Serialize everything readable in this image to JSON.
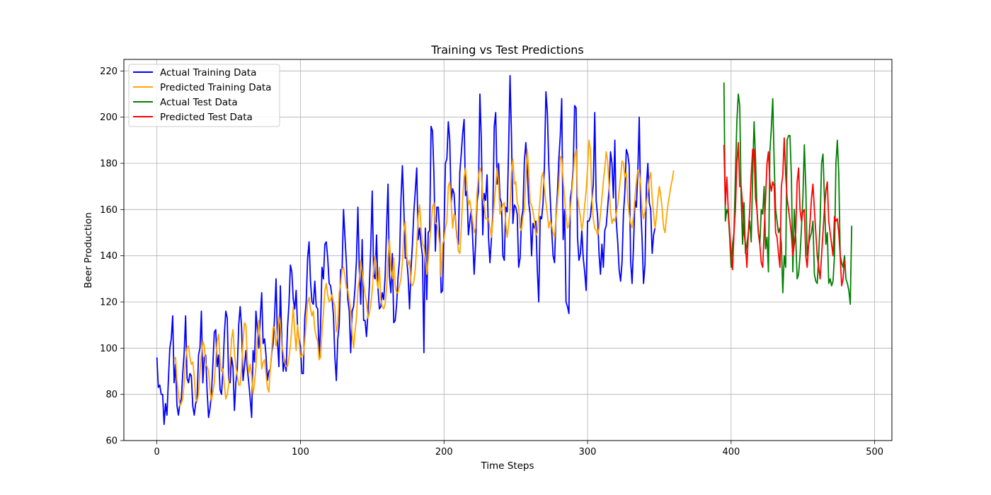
{
  "chart_data": {
    "type": "line",
    "title": "Training vs Test Predictions",
    "xlabel": "Time Steps",
    "ylabel": "Beer Production",
    "xlim": [
      -23,
      512
    ],
    "ylim": [
      60,
      225
    ],
    "xticks": [
      0,
      100,
      200,
      300,
      400,
      500
    ],
    "yticks": [
      60,
      80,
      100,
      120,
      140,
      160,
      180,
      200,
      220
    ],
    "grid": true,
    "legend_position": "top-left",
    "series": [
      {
        "name": "Actual Training Data",
        "color": "#0000ff",
        "x_start": 0,
        "values": [
          96,
          83,
          84,
          80,
          80,
          67,
          76,
          71,
          86,
          100,
          104,
          114,
          85,
          93,
          75,
          71,
          76,
          78,
          89,
          98,
          114,
          87,
          85,
          89,
          88,
          75,
          71,
          76,
          78,
          97,
          100,
          116,
          85,
          96,
          97,
          81,
          70,
          74,
          80,
          93,
          107,
          108,
          92,
          97,
          82,
          80,
          90,
          106,
          116,
          113,
          86,
          85,
          96,
          92,
          73,
          85,
          91,
          110,
          118,
          109,
          86,
          92,
          99,
          91,
          85,
          78,
          70,
          99,
          94,
          116,
          108,
          100,
          113,
          124,
          102,
          104,
          97,
          86,
          90,
          91,
          98,
          102,
          114,
          130,
          103,
          92,
          127,
          104,
          90,
          95,
          90,
          109,
          119,
          136,
          133,
          121,
          117,
          125,
          109,
          104,
          101,
          89,
          89,
          113,
          120,
          139,
          146,
          129,
          120,
          119,
          129,
          118,
          117,
          96,
          109,
          135,
          130,
          145,
          146,
          139,
          128,
          127,
          122,
          114,
          96,
          86,
          104,
          110,
          134,
          134,
          160,
          148,
          137,
          121,
          116,
          98,
          116,
          118,
          126,
          138,
          161,
          134,
          119,
          147,
          112,
          112,
          105,
          115,
          127,
          144,
          168,
          132,
          130,
          149,
          126,
          117,
          118,
          124,
          121,
          131,
          152,
          171,
          131,
          124,
          141,
          111,
          112,
          119,
          131,
          138,
          164,
          179,
          161,
          139,
          139,
          131,
          117,
          134,
          145,
          159,
          168,
          178,
          147,
          152,
          145,
          140,
          98,
          152,
          121,
          150,
          151,
          196,
          194,
          175,
          142,
          161,
          161,
          150,
          124,
          125,
          150,
          180,
          182,
          198,
          190,
          163,
          169,
          167,
          156,
          148,
          145,
          176,
          184,
          193,
          199,
          166,
          168,
          149,
          155,
          160,
          147,
          132,
          145,
          163,
          168,
          210,
          190,
          149,
          167,
          164,
          175,
          148,
          137,
          147,
          158,
          196,
          202,
          171,
          180,
          165,
          163,
          140,
          138,
          161,
          159,
          186,
          218,
          192,
          154,
          162,
          161,
          158,
          135,
          139,
          156,
          160,
          181,
          189,
          178,
          163,
          158,
          140,
          154,
          152,
          155,
          134,
          120,
          157,
          156,
          163,
          180,
          211,
          202,
          179,
          165,
          151,
          140,
          137,
          157,
          167,
          182,
          192,
          208,
          147,
          160,
          120,
          118,
          115,
          165,
          169,
          178,
          205,
          204,
          148,
          138,
          141,
          151,
          139,
          133,
          125,
          155,
          155,
          157,
          164,
          171,
          202,
          164,
          157,
          141,
          132,
          145,
          135,
          151,
          153,
          161,
          169,
          185,
          180,
          165,
          190,
          155,
          146,
          134,
          129,
          137,
          158,
          168,
          186,
          184,
          179,
          138,
          128,
          144,
          164,
          161,
          176,
          200,
          161,
          147,
          128,
          136,
          170,
          180,
          163,
          160,
          141,
          149,
          152
        ]
      },
      {
        "name": "Predicted Training Data",
        "color": "#ffa500",
        "x_start": 12,
        "values": [
          95,
          96,
          86,
          80,
          75,
          76,
          78,
          85,
          95,
          100,
          101,
          96,
          93,
          94,
          88,
          78,
          77,
          80,
          90,
          97,
          103,
          101,
          93,
          92,
          90,
          82,
          77,
          81,
          85,
          95,
          103,
          106,
          95,
          90,
          91,
          84,
          78,
          80,
          84,
          94,
          104,
          108,
          98,
          92,
          88,
          84,
          84,
          91,
          103,
          111,
          110,
          95,
          89,
          93,
          88,
          80,
          85,
          92,
          104,
          112,
          103,
          91,
          94,
          95,
          89,
          83,
          81,
          91,
          99,
          109,
          109,
          101,
          105,
          114,
          110,
          101,
          98,
          94,
          92,
          92,
          96,
          101,
          109,
          118,
          107,
          99,
          110,
          103,
          96,
          97,
          97,
          103,
          111,
          120,
          122,
          117,
          114,
          116,
          108,
          105,
          103,
          95,
          96,
          107,
          115,
          125,
          128,
          123,
          120,
          121,
          123,
          120,
          118,
          107,
          110,
          124,
          128,
          134,
          135,
          131,
          126,
          125,
          121,
          117,
          106,
          100,
          107,
          113,
          125,
          130,
          138,
          133,
          128,
          123,
          120,
          113,
          115,
          119,
          125,
          135,
          140,
          130,
          126,
          135,
          121,
          118,
          117,
          119,
          126,
          139,
          147,
          134,
          130,
          139,
          127,
          124,
          124,
          127,
          130,
          137,
          150,
          155,
          140,
          136,
          138,
          128,
          127,
          129,
          134,
          144,
          157,
          162,
          152,
          145,
          144,
          139,
          132,
          138,
          146,
          153,
          161,
          163,
          154,
          154,
          150,
          145,
          131,
          145,
          147,
          152,
          155,
          170,
          172,
          163,
          152,
          158,
          157,
          149,
          142,
          141,
          152,
          165,
          174,
          178,
          170,
          162,
          164,
          159,
          155,
          150,
          152,
          167,
          174,
          178,
          176,
          165,
          162,
          156,
          156,
          156,
          152,
          148,
          155,
          163,
          170,
          178,
          172,
          158,
          160,
          162,
          163,
          154,
          148,
          153,
          160,
          176,
          182,
          171,
          172,
          163,
          161,
          152,
          151,
          157,
          160,
          173,
          186,
          177,
          163,
          162,
          159,
          155,
          149,
          150,
          157,
          165,
          174,
          176,
          169,
          163,
          158,
          152,
          155,
          153,
          150,
          148,
          156,
          163,
          171,
          183,
          182,
          173,
          165,
          157,
          152,
          153,
          160,
          167,
          175,
          183,
          186,
          166,
          161,
          157,
          151,
          155,
          162,
          168,
          178,
          190,
          186,
          165,
          156,
          152,
          151,
          149,
          152,
          158,
          165,
          172,
          178,
          185,
          181,
          170,
          159,
          154,
          156,
          155,
          158,
          162,
          168,
          174,
          181,
          180,
          174,
          176,
          164,
          158,
          154,
          152,
          157,
          165,
          172,
          177,
          176,
          171,
          160,
          156,
          159,
          163,
          167,
          173,
          176,
          165,
          158,
          152,
          157,
          165,
          170,
          166,
          160,
          152,
          150,
          157,
          162,
          166,
          170,
          173,
          177
        ]
      },
      {
        "name": "Actual Test Data",
        "color": "#008000",
        "x_start": 395,
        "values": [
          215,
          155,
          160,
          158,
          148,
          135,
          145,
          150,
          175,
          198,
          210,
          205,
          165,
          145,
          163,
          141,
          145,
          150,
          155,
          146,
          175,
          198,
          182,
          160,
          150,
          145,
          160,
          158,
          170,
          143,
          148,
          133,
          185,
          195,
          208,
          180,
          160,
          155,
          150,
          152,
          145,
          124,
          140,
          135,
          190,
          192,
          192,
          174,
          133,
          160,
          148,
          130,
          132,
          140,
          152,
          165,
          188,
          170,
          140,
          145,
          148,
          150,
          155,
          132,
          129,
          128,
          140,
          155,
          180,
          184,
          165,
          145,
          150,
          128,
          130,
          127,
          129,
          140,
          180,
          190,
          175,
          140,
          137,
          135,
          140,
          130,
          128,
          125,
          119,
          153
        ]
      },
      {
        "name": "Predicted Test Data",
        "color": "#ff0000",
        "x_start": 395,
        "values": [
          188,
          162,
          174,
          160,
          150,
          140,
          134,
          150,
          160,
          180,
          189,
          170,
          170,
          162,
          150,
          145,
          135,
          150,
          160,
          175,
          186,
          186,
          165,
          160,
          150,
          145,
          137,
          135,
          150,
          165,
          180,
          185,
          172,
          168,
          172,
          170,
          150,
          148,
          141,
          135,
          170,
          175,
          191,
          175,
          165,
          160,
          155,
          149,
          140,
          145,
          150,
          172,
          178,
          160,
          155,
          159,
          160,
          140,
          135,
          145,
          155,
          165,
          171,
          160,
          150,
          140,
          135,
          130,
          140,
          150,
          160,
          168,
          172,
          155,
          150,
          145,
          140,
          157,
          155,
          156,
          150,
          140,
          127,
          130,
          138
        ]
      }
    ]
  }
}
